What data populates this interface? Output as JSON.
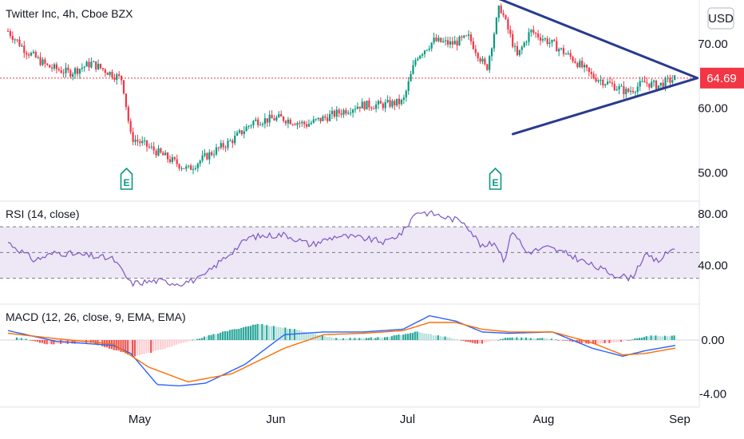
{
  "chart_data": [
    {
      "type": "candlestick",
      "title": "Twitter Inc, 4h, Cboe BZX",
      "currency": "USD",
      "y_ticks": [
        "70.00",
        "60.00",
        "50.00"
      ],
      "y_values": [
        70,
        60,
        50
      ],
      "last_price": 64.69,
      "last_price_label": "64.69",
      "earnings_markers": [
        {
          "date": "Apr 28",
          "label": "E"
        },
        {
          "date": "Jul 21",
          "label": "E"
        }
      ],
      "trendlines": [
        {
          "from": {
            "date": "Jul 20",
            "value": 77.5
          },
          "to": {
            "date": "Sep 5",
            "value": 64.7
          }
        },
        {
          "from": {
            "date": "Jul 25",
            "value": 56.0
          },
          "to": {
            "date": "Sep 5",
            "value": 64.7
          }
        }
      ],
      "approx_closes": [
        {
          "date": "Apr 1",
          "value": 72.0
        },
        {
          "date": "Apr 5",
          "value": 69.0
        },
        {
          "date": "Apr 10",
          "value": 66.5
        },
        {
          "date": "Apr 15",
          "value": 65.5
        },
        {
          "date": "Apr 20",
          "value": 67.0
        },
        {
          "date": "Apr 27",
          "value": 64.5
        },
        {
          "date": "Apr 29",
          "value": 55.5
        },
        {
          "date": "May 3",
          "value": 54.0
        },
        {
          "date": "May 8",
          "value": 52.0
        },
        {
          "date": "May 12",
          "value": 50.5
        },
        {
          "date": "May 16",
          "value": 52.5
        },
        {
          "date": "May 22",
          "value": 55.0
        },
        {
          "date": "May 27",
          "value": 58.0
        },
        {
          "date": "Jun 2",
          "value": 58.5
        },
        {
          "date": "Jun 8",
          "value": 57.5
        },
        {
          "date": "Jun 14",
          "value": 59.0
        },
        {
          "date": "Jun 20",
          "value": 60.5
        },
        {
          "date": "Jun 25",
          "value": 60.5
        },
        {
          "date": "Jun 30",
          "value": 61.0
        },
        {
          "date": "Jul 3",
          "value": 68.0
        },
        {
          "date": "Jul 7",
          "value": 70.5
        },
        {
          "date": "Jul 11",
          "value": 70.0
        },
        {
          "date": "Jul 15",
          "value": 71.0
        },
        {
          "date": "Jul 19",
          "value": 66.0
        },
        {
          "date": "Jul 22",
          "value": 76.0
        },
        {
          "date": "Jul 26",
          "value": 68.0
        },
        {
          "date": "Jul 29",
          "value": 72.0
        },
        {
          "date": "Aug 3",
          "value": 70.0
        },
        {
          "date": "Aug 8",
          "value": 67.5
        },
        {
          "date": "Aug 12",
          "value": 65.0
        },
        {
          "date": "Aug 17",
          "value": 63.5
        },
        {
          "date": "Aug 20",
          "value": 62.5
        },
        {
          "date": "Aug 24",
          "value": 64.0
        },
        {
          "date": "Aug 27",
          "value": 63.5
        },
        {
          "date": "Aug 31",
          "value": 64.69
        }
      ]
    },
    {
      "type": "line",
      "title": "RSI (14, close)",
      "y_ticks": [
        "80.00",
        "40.00"
      ],
      "y_values": [
        80,
        40
      ],
      "bands": [
        70,
        50,
        30
      ],
      "series": [
        {
          "values": [
            {
              "date": "Apr 1",
              "value": 58
            },
            {
              "date": "Apr 7",
              "value": 44
            },
            {
              "date": "Apr 12",
              "value": 50
            },
            {
              "date": "Apr 18",
              "value": 48
            },
            {
              "date": "Apr 25",
              "value": 45
            },
            {
              "date": "Apr 29",
              "value": 26
            },
            {
              "date": "May 5",
              "value": 28
            },
            {
              "date": "May 10",
              "value": 26
            },
            {
              "date": "May 15",
              "value": 30
            },
            {
              "date": "May 20",
              "value": 45
            },
            {
              "date": "May 26",
              "value": 62
            },
            {
              "date": "Jun 3",
              "value": 64
            },
            {
              "date": "Jun 9",
              "value": 56
            },
            {
              "date": "Jun 15",
              "value": 63
            },
            {
              "date": "Jun 21",
              "value": 61
            },
            {
              "date": "Jun 26",
              "value": 58
            },
            {
              "date": "Jun 30",
              "value": 66
            },
            {
              "date": "Jul 3",
              "value": 82
            },
            {
              "date": "Jul 7",
              "value": 80
            },
            {
              "date": "Jul 10",
              "value": 77
            },
            {
              "date": "Jul 14",
              "value": 74
            },
            {
              "date": "Jul 18",
              "value": 54
            },
            {
              "date": "Jul 21",
              "value": 58
            },
            {
              "date": "Jul 23",
              "value": 44
            },
            {
              "date": "Jul 25",
              "value": 68
            },
            {
              "date": "Jul 28",
              "value": 50
            },
            {
              "date": "Aug 2",
              "value": 54
            },
            {
              "date": "Aug 7",
              "value": 48
            },
            {
              "date": "Aug 12",
              "value": 40
            },
            {
              "date": "Aug 17",
              "value": 33
            },
            {
              "date": "Aug 21",
              "value": 30
            },
            {
              "date": "Aug 24",
              "value": 48
            },
            {
              "date": "Aug 27",
              "value": 43
            },
            {
              "date": "Aug 31",
              "value": 55
            }
          ]
        }
      ]
    },
    {
      "type": "bar+line",
      "title": "MACD (12, 26, close, 9, EMA, EMA)",
      "y_ticks": [
        "0.00",
        "-4.00"
      ],
      "y_values": [
        0,
        -4
      ],
      "macd": [
        {
          "date": "Apr 1",
          "value": 0.7
        },
        {
          "date": "Apr 12",
          "value": -0.1
        },
        {
          "date": "Apr 25",
          "value": -0.4
        },
        {
          "date": "Apr 29",
          "value": -1.0
        },
        {
          "date": "May 5",
          "value": -3.3
        },
        {
          "date": "May 10",
          "value": -3.4
        },
        {
          "date": "May 16",
          "value": -3.2
        },
        {
          "date": "May 25",
          "value": -1.8
        },
        {
          "date": "Jun 3",
          "value": 0.4
        },
        {
          "date": "Jun 12",
          "value": 0.6
        },
        {
          "date": "Jun 21",
          "value": 0.6
        },
        {
          "date": "Jun 30",
          "value": 0.8
        },
        {
          "date": "Jul 6",
          "value": 1.8
        },
        {
          "date": "Jul 12",
          "value": 1.4
        },
        {
          "date": "Jul 18",
          "value": 0.6
        },
        {
          "date": "Jul 24",
          "value": 0.5
        },
        {
          "date": "Aug 3",
          "value": 0.6
        },
        {
          "date": "Aug 12",
          "value": -0.6
        },
        {
          "date": "Aug 19",
          "value": -1.2
        },
        {
          "date": "Aug 24",
          "value": -0.8
        },
        {
          "date": "Aug 31",
          "value": -0.4
        }
      ],
      "signal": [
        {
          "date": "Apr 1",
          "value": 0.5
        },
        {
          "date": "Apr 12",
          "value": 0.1
        },
        {
          "date": "Apr 25",
          "value": -0.3
        },
        {
          "date": "May 3",
          "value": -2.0
        },
        {
          "date": "May 12",
          "value": -3.1
        },
        {
          "date": "May 22",
          "value": -2.5
        },
        {
          "date": "Jun 3",
          "value": -0.6
        },
        {
          "date": "Jun 12",
          "value": 0.4
        },
        {
          "date": "Jun 21",
          "value": 0.5
        },
        {
          "date": "Jun 30",
          "value": 0.7
        },
        {
          "date": "Jul 6",
          "value": 1.3
        },
        {
          "date": "Jul 12",
          "value": 1.3
        },
        {
          "date": "Jul 18",
          "value": 0.8
        },
        {
          "date": "Jul 24",
          "value": 0.6
        },
        {
          "date": "Aug 3",
          "value": 0.6
        },
        {
          "date": "Aug 12",
          "value": -0.2
        },
        {
          "date": "Aug 19",
          "value": -1.1
        },
        {
          "date": "Aug 24",
          "value": -1.0
        },
        {
          "date": "Aug 31",
          "value": -0.6
        }
      ],
      "histogram": [
        {
          "date": "Apr 3",
          "value": 0.2
        },
        {
          "date": "Apr 10",
          "value": -0.3
        },
        {
          "date": "Apr 20",
          "value": -0.2
        },
        {
          "date": "Apr 30",
          "value": -1.2
        },
        {
          "date": "May 5",
          "value": -0.8
        },
        {
          "date": "May 12",
          "value": -0.1
        },
        {
          "date": "May 20",
          "value": 0.6
        },
        {
          "date": "May 28",
          "value": 1.2
        },
        {
          "date": "Jun 5",
          "value": 0.8
        },
        {
          "date": "Jun 15",
          "value": 0.1
        },
        {
          "date": "Jun 26",
          "value": 0.2
        },
        {
          "date": "Jul 3",
          "value": 0.6
        },
        {
          "date": "Jul 10",
          "value": 0.2
        },
        {
          "date": "Jul 17",
          "value": -0.3
        },
        {
          "date": "Jul 24",
          "value": 0.2
        },
        {
          "date": "Aug 2",
          "value": 0.1
        },
        {
          "date": "Aug 12",
          "value": -0.3
        },
        {
          "date": "Aug 19",
          "value": -0.1
        },
        {
          "date": "Aug 25",
          "value": 0.3
        },
        {
          "date": "Aug 31",
          "value": 0.3
        }
      ]
    }
  ],
  "x_axis": {
    "ticks": [
      "May",
      "Jun",
      "Jul",
      "Aug",
      "Sep"
    ]
  },
  "colors": {
    "up": "#089981",
    "down": "#f23645",
    "trendline": "#283b8f",
    "price_line": "#f23645",
    "rsi": "#7e57c2",
    "rsi_band": "#ede7f6",
    "macd": "#2962ff",
    "signal": "#ff6d00",
    "hist_up": "#26a69a",
    "hist_up_light": "#b2dfdb",
    "hist_down": "#ef5350",
    "hist_down_light": "#ffcdd2"
  }
}
